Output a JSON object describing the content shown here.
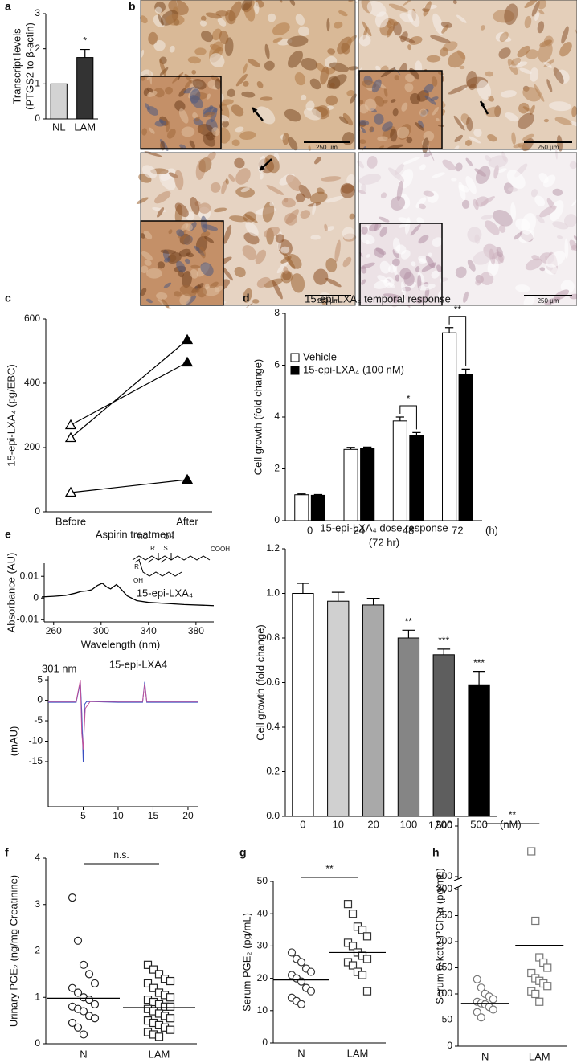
{
  "panel_labels": [
    "a",
    "b",
    "c",
    "d",
    "e",
    "f",
    "g",
    "h"
  ],
  "micrographs": {
    "scale_bars": [
      "250 μm",
      "250 μm",
      "250 μm",
      "250 μm"
    ]
  },
  "chart_data": [
    {
      "type": "bar",
      "categories": [
        "NL",
        "LAM"
      ],
      "values": [
        1,
        1.75
      ],
      "errors": [
        null,
        0.23
      ],
      "colors": [
        "#d3d3d3",
        "#333333"
      ],
      "significance": [
        null,
        "*"
      ],
      "ylabel": [
        "Transcript levels",
        "(PTGS2 to β-actin)"
      ],
      "ylim": [
        0,
        3
      ],
      "yticks": [
        0,
        1,
        2,
        3
      ]
    },
    {
      "type": "line",
      "categories": [
        "Before",
        "After"
      ],
      "series": [
        {
          "values": [
            270,
            465
          ]
        },
        {
          "values": [
            230,
            535
          ]
        },
        {
          "values": [
            60,
            100
          ]
        }
      ],
      "markers": [
        "open-triangle",
        "filled-triangle"
      ],
      "color": "#000000",
      "ylabel": "15-epi-LXA₄ (pg/EBC)",
      "xlabel": "Aspirin treatment",
      "ylim": [
        0,
        600
      ],
      "yticks": [
        0,
        200,
        400,
        600
      ]
    },
    {
      "type": "groupedbar",
      "title": "15-epi-LXA₄ temporal response",
      "categories": [
        "0",
        "24",
        "48",
        "72"
      ],
      "x_unit": "(h)",
      "series": [
        {
          "name": "Vehicle",
          "color": "#ffffff",
          "values": [
            1.0,
            2.75,
            3.85,
            7.25
          ],
          "errors": [
            0.03,
            0.08,
            0.15,
            0.2
          ]
        },
        {
          "name": "15-epi-LXA₄ (100 nM)",
          "color": "#000000",
          "values": [
            0.98,
            2.78,
            3.3,
            5.65
          ],
          "errors": [
            0.03,
            0.06,
            0.1,
            0.2
          ]
        }
      ],
      "significance": [
        null,
        null,
        "*",
        "**"
      ],
      "legend": "upper-left",
      "ylabel": "Cell growth (fold change)",
      "ylim": [
        0,
        8
      ],
      "yticks": [
        0,
        2,
        4,
        6,
        8
      ]
    },
    {
      "type": "line",
      "x": [
        250,
        260,
        270,
        278,
        283,
        288,
        292,
        297,
        301,
        305,
        308,
        313,
        317,
        322,
        330,
        340,
        355,
        370,
        385,
        395
      ],
      "values": [
        0.0005,
        0.0008,
        0.0012,
        0.0022,
        0.003,
        0.0033,
        0.0038,
        0.0058,
        0.0068,
        0.005,
        0.0042,
        0.0062,
        0.004,
        0.001,
        -0.0012,
        -0.002,
        -0.0025,
        -0.003,
        -0.0033,
        -0.0035
      ],
      "color": "#000000",
      "xlim": [
        250,
        395
      ],
      "ylim": [
        -0.011,
        0.016
      ],
      "xticks": [
        260,
        300,
        340,
        380
      ],
      "yticks": [
        0.01,
        0,
        -0.01
      ],
      "xlabel": "Wavelength (nm)",
      "ylabel": "Absorbance (AU)",
      "annotation": "15-epi-LXA₄",
      "structure_labels": [
        "HO",
        "OH",
        "R",
        "S",
        "COOH",
        "R",
        "OH"
      ]
    },
    {
      "type": "line",
      "title": "301 nm",
      "annotation": "15-epi-LXA4",
      "series": [
        {
          "color": "#3a4fc0",
          "x": [
            0,
            4,
            4.6,
            4.8,
            5,
            5.2,
            5.5,
            10,
            13.5,
            13.8,
            14.1,
            21.5
          ],
          "values": [
            -0.5,
            -0.5,
            4.5,
            -3,
            -15,
            -1,
            -0.3,
            -0.5,
            -0.5,
            4.5,
            -0.5,
            -0.5
          ]
        },
        {
          "color": "#c0509a",
          "x": [
            0,
            4,
            4.6,
            4.8,
            5,
            5.3,
            6,
            13.5,
            13.8,
            14.1,
            21.5
          ],
          "values": [
            -0.3,
            -0.3,
            5,
            -8,
            -12,
            -2,
            -0.3,
            -0.3,
            4,
            -0.3,
            -0.3
          ]
        }
      ],
      "xlim": [
        0,
        21.5
      ],
      "ylim": [
        -26,
        6
      ],
      "xticks": [
        5,
        10,
        15,
        20
      ],
      "yticks": [
        5,
        0,
        -5,
        -10,
        -15
      ],
      "ylabel": "(mAU)"
    },
    {
      "type": "bar",
      "title": "15-epi-LXA₄ dose response",
      "subtitle": "(72 hr)",
      "categories": [
        "0",
        "10",
        "20",
        "100",
        "200",
        "500"
      ],
      "x_unit": "(nM)",
      "values": [
        1.0,
        0.965,
        0.948,
        0.8,
        0.725,
        0.59
      ],
      "errors": [
        0.045,
        0.04,
        0.03,
        0.035,
        0.025,
        0.06
      ],
      "colors": [
        "#ffffff",
        "#d0d0d0",
        "#a9a9a9",
        "#858585",
        "#5e5e5e",
        "#000000"
      ],
      "significance": [
        null,
        null,
        null,
        "**",
        "***",
        "***"
      ],
      "ylabel": "Cell growth (fold change)",
      "ylim": [
        0,
        1.2
      ],
      "yticks": [
        {
          "value": 0,
          "label": "0.0"
        },
        0.2,
        0.4,
        0.6,
        0.8,
        {
          "value": 1,
          "label": "1.0"
        },
        1.2
      ]
    },
    {
      "type": "dotplot",
      "categories": [
        "N",
        "LAM"
      ],
      "markers": [
        "circle",
        "square"
      ],
      "color": "#222222",
      "values": [
        [
          3.15,
          2.22,
          1.7,
          1.5,
          1.3,
          1.2,
          1.1,
          1.0,
          0.95,
          0.85,
          0.8,
          0.75,
          0.7,
          0.6,
          0.55,
          0.45,
          0.35,
          0.2
        ],
        [
          1.7,
          1.6,
          1.5,
          1.4,
          1.35,
          1.3,
          1.2,
          1.1,
          1.05,
          1.0,
          0.95,
          0.9,
          0.85,
          0.8,
          0.8,
          0.75,
          0.7,
          0.65,
          0.6,
          0.55,
          0.5,
          0.45,
          0.4,
          0.35,
          0.3,
          0.25,
          0.2,
          0.15
        ]
      ],
      "means": [
        0.98,
        0.78
      ],
      "comparison": "n.s.",
      "ylabel": "Urinary PGE₂ (ng/mg Creatinine)",
      "ylim": [
        0,
        4
      ],
      "yticks": [
        0,
        1,
        2,
        3,
        4
      ]
    },
    {
      "type": "dotplot",
      "categories": [
        "N",
        "LAM"
      ],
      "markers": [
        "circle",
        "square"
      ],
      "color": "#333333",
      "values": [
        [
          28,
          26,
          25,
          23,
          22,
          21,
          20,
          19,
          17,
          16,
          14,
          13,
          12
        ],
        [
          43,
          40,
          36,
          35,
          33,
          31,
          30,
          28,
          27,
          26,
          25,
          24,
          22,
          21,
          16
        ]
      ],
      "means": [
        19.5,
        28
      ],
      "comparison": "**",
      "ylabel": "Serum PGE₂ (pg/mL)",
      "ylim": [
        0,
        50
      ],
      "yticks": [
        0,
        10,
        20,
        30,
        40,
        50
      ]
    },
    {
      "type": "dotplot",
      "categories": [
        "N",
        "LAM"
      ],
      "markers": [
        "circle",
        "square"
      ],
      "color": "#777777",
      "values": [
        [
          128,
          112,
          100,
          95,
          90,
          85,
          82,
          80,
          75,
          70,
          65,
          55
        ],
        [
          1000,
          240,
          170,
          160,
          150,
          140,
          130,
          125,
          120,
          115,
          105,
          100,
          85
        ]
      ],
      "means": [
        82,
        193
      ],
      "comparison": "**",
      "ylabel": "Serum 6-keto-PGF₁α (pg/mL)",
      "ylim": [
        0,
        1500
      ],
      "axis_break": [
        300,
        500
      ],
      "yticks": [
        0,
        50,
        100,
        150,
        200,
        250,
        300,
        500,
        {
          "value": 1500,
          "label": "1,500"
        }
      ]
    }
  ]
}
